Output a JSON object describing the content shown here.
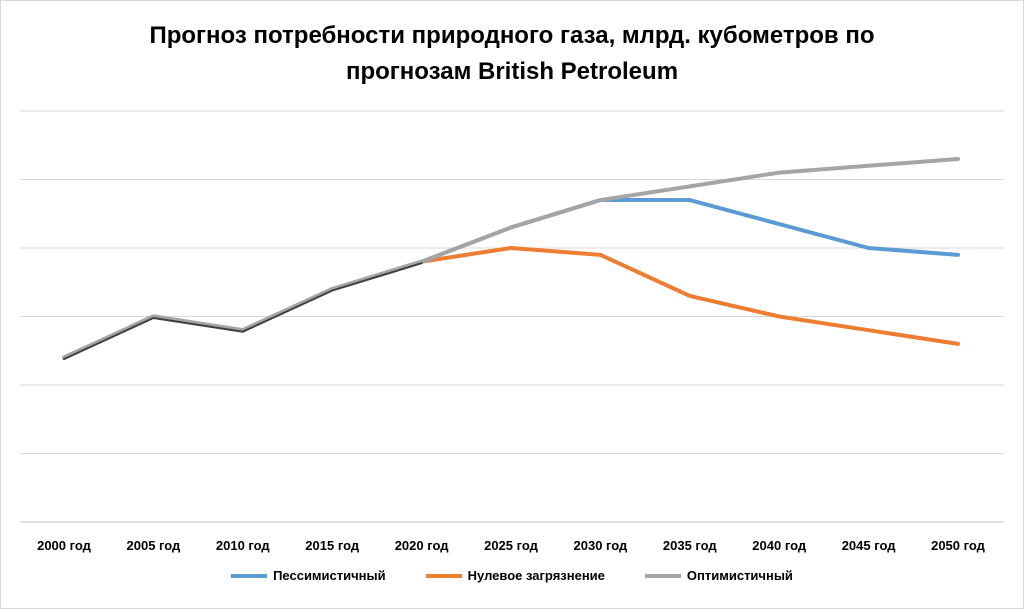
{
  "chart_data": {
    "type": "line",
    "title_lines": [
      "Прогноз потребности природного газа, млрд. кубометров по",
      "прогнозам  British Petroleum"
    ],
    "categories": [
      "2000 год",
      "2005 год",
      "2010 год",
      "2015 год",
      "2020 год",
      "2025 год",
      "2030 год",
      "2035 год",
      "2040 год",
      "2045 год",
      "2050 год"
    ],
    "ylim": [
      0,
      6
    ],
    "y_gridlines": [
      0,
      1,
      2,
      3,
      4,
      5,
      6
    ],
    "y_tick_labels_visible": false,
    "series": [
      {
        "name": "Пессимистичный",
        "color": "#5b9bd5",
        "values": [
          2.4,
          3.0,
          2.8,
          3.4,
          3.8,
          4.3,
          4.7,
          4.7,
          4.35,
          4.0,
          3.9
        ]
      },
      {
        "name": "Нулевое загрязнение",
        "color": "#ed7d31",
        "values": [
          2.4,
          3.0,
          2.8,
          3.4,
          3.8,
          4.0,
          3.9,
          3.3,
          3.0,
          2.8,
          2.6
        ]
      },
      {
        "name": "Оптимистичный",
        "color": "#a5a5a5",
        "values": [
          2.4,
          3.0,
          2.8,
          3.4,
          3.8,
          4.3,
          4.7,
          4.9,
          5.1,
          5.2,
          5.3
        ]
      }
    ],
    "history_overlay": {
      "color": "#404040",
      "end_index": 4
    },
    "legend_position": "bottom",
    "grid": true
  }
}
